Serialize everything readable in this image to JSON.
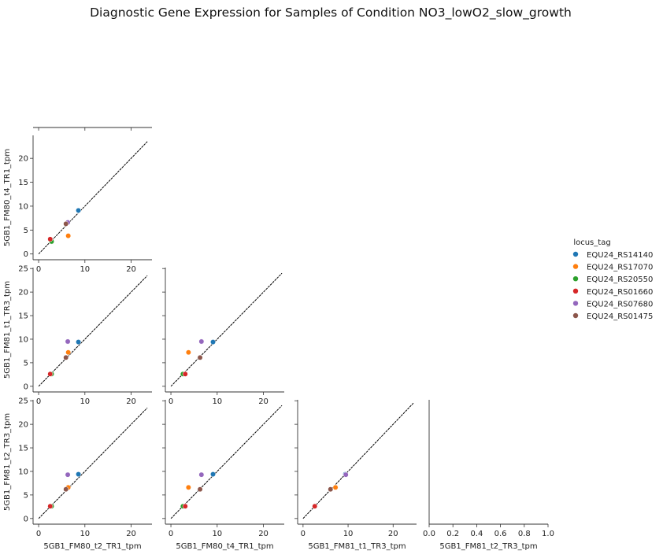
{
  "figure": {
    "title": "Diagnostic Gene Expression for Samples of Condition NO3_lowO2_slow_growth"
  },
  "legend": {
    "title": "locus_tag",
    "entries": [
      {
        "label": "EQU24_RS14140",
        "color": "#1f77b4"
      },
      {
        "label": "EQU24_RS17070",
        "color": "#ff7f0e"
      },
      {
        "label": "EQU24_RS20550",
        "color": "#2ca02c"
      },
      {
        "label": "EQU24_RS01660",
        "color": "#d62728"
      },
      {
        "label": "EQU24_RS07680",
        "color": "#9467bd"
      },
      {
        "label": "EQU24_RS01475",
        "color": "#8c564b"
      }
    ]
  },
  "chart_data": [
    {
      "type": "scatter",
      "row": 0,
      "col": 0,
      "xlabel": "",
      "ylabel": "5GB1_FM80_t4_TR1_tpm",
      "xlim": [
        -1.2,
        24.5
      ],
      "ylim": [
        -1.2,
        24.8
      ],
      "xticks": [
        "0",
        "10",
        "20"
      ],
      "yticks": [
        "0",
        "5",
        "10",
        "15",
        "20"
      ],
      "diagonal": [
        0,
        23.5
      ],
      "points": [
        {
          "x": 8.6,
          "y": 9.1,
          "series": "EQU24_RS14140"
        },
        {
          "x": 6.4,
          "y": 3.8,
          "series": "EQU24_RS17070"
        },
        {
          "x": 2.8,
          "y": 2.6,
          "series": "EQU24_RS20550"
        },
        {
          "x": 2.5,
          "y": 3.1,
          "series": "EQU24_RS01660"
        },
        {
          "x": 6.3,
          "y": 6.6,
          "series": "EQU24_RS07680"
        },
        {
          "x": 5.9,
          "y": 6.3,
          "series": "EQU24_RS01475"
        }
      ]
    },
    {
      "type": "scatter",
      "row": 1,
      "col": 0,
      "xlabel": "",
      "ylabel": "5GB1_FM81_t1_TR3_tpm",
      "xlim": [
        -1.2,
        24.5
      ],
      "ylim": [
        -1.2,
        25.2
      ],
      "xticks": [
        "0",
        "10",
        "20"
      ],
      "yticks": [
        "0",
        "5",
        "10",
        "15",
        "20",
        "25"
      ],
      "diagonal": [
        0,
        23.5
      ],
      "points": [
        {
          "x": 8.6,
          "y": 9.4,
          "series": "EQU24_RS14140"
        },
        {
          "x": 6.4,
          "y": 7.2,
          "series": "EQU24_RS17070"
        },
        {
          "x": 2.8,
          "y": 2.6,
          "series": "EQU24_RS20550"
        },
        {
          "x": 2.5,
          "y": 2.6,
          "series": "EQU24_RS01660"
        },
        {
          "x": 6.3,
          "y": 9.5,
          "series": "EQU24_RS07680"
        },
        {
          "x": 5.9,
          "y": 6.1,
          "series": "EQU24_RS01475"
        }
      ]
    },
    {
      "type": "scatter",
      "row": 1,
      "col": 1,
      "xlabel": "",
      "ylabel": "",
      "xlim": [
        -1.2,
        24.5
      ],
      "ylim": [
        -1.2,
        25.2
      ],
      "xticks": [
        "0",
        "10",
        "20"
      ],
      "yticks": [],
      "diagonal": [
        0,
        24.0
      ],
      "points": [
        {
          "x": 9.1,
          "y": 9.4,
          "series": "EQU24_RS14140"
        },
        {
          "x": 3.8,
          "y": 7.2,
          "series": "EQU24_RS17070"
        },
        {
          "x": 2.6,
          "y": 2.6,
          "series": "EQU24_RS20550"
        },
        {
          "x": 3.1,
          "y": 2.6,
          "series": "EQU24_RS01660"
        },
        {
          "x": 6.6,
          "y": 9.5,
          "series": "EQU24_RS07680"
        },
        {
          "x": 6.3,
          "y": 6.1,
          "series": "EQU24_RS01475"
        }
      ]
    },
    {
      "type": "scatter",
      "row": 2,
      "col": 0,
      "xlabel": "5GB1_FM80_t2_TR1_tpm",
      "ylabel": "5GB1_FM81_t2_TR3_tpm",
      "xlim": [
        -1.2,
        24.5
      ],
      "ylim": [
        -1.2,
        25.2
      ],
      "xticks": [
        "0",
        "10",
        "20"
      ],
      "yticks": [
        "0",
        "5",
        "10",
        "15",
        "20",
        "25"
      ],
      "diagonal": [
        0,
        23.5
      ],
      "points": [
        {
          "x": 8.6,
          "y": 9.4,
          "series": "EQU24_RS14140"
        },
        {
          "x": 6.4,
          "y": 6.6,
          "series": "EQU24_RS17070"
        },
        {
          "x": 2.8,
          "y": 2.6,
          "series": "EQU24_RS20550"
        },
        {
          "x": 2.5,
          "y": 2.6,
          "series": "EQU24_RS01660"
        },
        {
          "x": 6.3,
          "y": 9.3,
          "series": "EQU24_RS07680"
        },
        {
          "x": 5.9,
          "y": 6.2,
          "series": "EQU24_RS01475"
        }
      ]
    },
    {
      "type": "scatter",
      "row": 2,
      "col": 1,
      "xlabel": "5GB1_FM80_t4_TR1_tpm",
      "ylabel": "",
      "xlim": [
        -1.2,
        24.5
      ],
      "ylim": [
        -1.2,
        25.2
      ],
      "xticks": [
        "0",
        "10",
        "20"
      ],
      "yticks": [],
      "diagonal": [
        0,
        24.0
      ],
      "points": [
        {
          "x": 9.1,
          "y": 9.4,
          "series": "EQU24_RS14140"
        },
        {
          "x": 3.8,
          "y": 6.6,
          "series": "EQU24_RS17070"
        },
        {
          "x": 2.6,
          "y": 2.6,
          "series": "EQU24_RS20550"
        },
        {
          "x": 3.1,
          "y": 2.6,
          "series": "EQU24_RS01660"
        },
        {
          "x": 6.6,
          "y": 9.3,
          "series": "EQU24_RS07680"
        },
        {
          "x": 6.3,
          "y": 6.2,
          "series": "EQU24_RS01475"
        }
      ]
    },
    {
      "type": "scatter",
      "row": 2,
      "col": 2,
      "xlabel": "5GB1_FM81_t1_TR3_tpm",
      "ylabel": "",
      "xlim": [
        -1.2,
        25.2
      ],
      "ylim": [
        -1.2,
        25.2
      ],
      "xticks": [
        "0",
        "10",
        "20"
      ],
      "yticks": [],
      "diagonal": [
        0,
        24.5
      ],
      "points": [
        {
          "x": 9.4,
          "y": 9.4,
          "series": "EQU24_RS14140"
        },
        {
          "x": 7.2,
          "y": 6.6,
          "series": "EQU24_RS17070"
        },
        {
          "x": 2.6,
          "y": 2.6,
          "series": "EQU24_RS20550"
        },
        {
          "x": 2.6,
          "y": 2.6,
          "series": "EQU24_RS01660"
        },
        {
          "x": 9.5,
          "y": 9.3,
          "series": "EQU24_RS07680"
        },
        {
          "x": 6.1,
          "y": 6.2,
          "series": "EQU24_RS01475"
        }
      ]
    },
    {
      "type": "scatter",
      "row": 2,
      "col": 3,
      "empty": true,
      "xlabel": "5GB1_FM81_t2_TR3_tpm",
      "ylabel": "",
      "xlim": [
        0,
        1
      ],
      "ylim": [
        0,
        1
      ],
      "xticks": [
        "0.0",
        "0.2",
        "0.4",
        "0.6",
        "0.8",
        "1.0"
      ],
      "yticks": [],
      "points": []
    }
  ]
}
